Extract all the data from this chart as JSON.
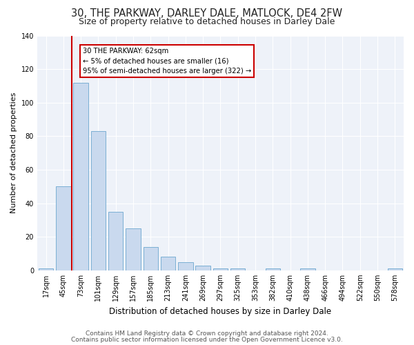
{
  "title": "30, THE PARKWAY, DARLEY DALE, MATLOCK, DE4 2FW",
  "subtitle": "Size of property relative to detached houses in Darley Dale",
  "xlabel": "Distribution of detached houses by size in Darley Dale",
  "ylabel": "Number of detached properties",
  "categories": [
    "17sqm",
    "45sqm",
    "73sqm",
    "101sqm",
    "129sqm",
    "157sqm",
    "185sqm",
    "213sqm",
    "241sqm",
    "269sqm",
    "297sqm",
    "325sqm",
    "353sqm",
    "382sqm",
    "410sqm",
    "438sqm",
    "466sqm",
    "494sqm",
    "522sqm",
    "550sqm",
    "578sqm"
  ],
  "values": [
    1,
    50,
    112,
    83,
    35,
    25,
    14,
    8,
    5,
    3,
    1,
    1,
    0,
    1,
    0,
    1,
    0,
    0,
    0,
    0,
    1
  ],
  "bar_color": "#c9d9ee",
  "bar_edge_color": "#7bafd4",
  "vline_x_index": 1.5,
  "vline_color": "#cc0000",
  "annotation_line1": "30 THE PARKWAY: 62sqm",
  "annotation_line2": "← 5% of detached houses are smaller (16)",
  "annotation_line3": "95% of semi-detached houses are larger (322) →",
  "annotation_box_color": "#ffffff",
  "annotation_box_edge": "#cc0000",
  "ylim": [
    0,
    140
  ],
  "yticks": [
    0,
    20,
    40,
    60,
    80,
    100,
    120,
    140
  ],
  "footer1": "Contains HM Land Registry data © Crown copyright and database right 2024.",
  "footer2": "Contains public sector information licensed under the Open Government Licence v3.0.",
  "bg_color": "#ffffff",
  "plot_bg_color": "#eef2f9",
  "title_fontsize": 10.5,
  "subtitle_fontsize": 9,
  "xlabel_fontsize": 8.5,
  "ylabel_fontsize": 8,
  "tick_fontsize": 7,
  "footer_fontsize": 6.5
}
